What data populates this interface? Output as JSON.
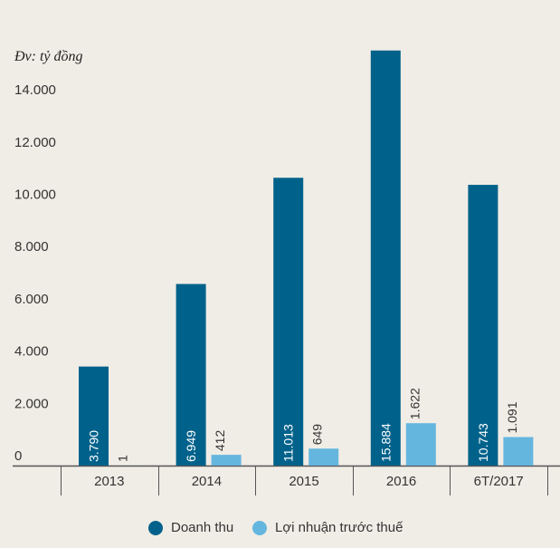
{
  "unit_label": "Đv: tỷ đồng",
  "colors": {
    "revenue": "#00628b",
    "profit": "#65b6df",
    "axis": "#555555",
    "text": "#333333",
    "background": "#f0ede6"
  },
  "legend": {
    "revenue": "Doanh thu",
    "profit": "Lợi nhuận trước thuế"
  },
  "chart_data": {
    "type": "bar",
    "title": "",
    "xlabel": "",
    "ylabel": "Đv: tỷ đồng",
    "ylim": [
      0,
      15000
    ],
    "yticks": [
      0,
      2000,
      4000,
      6000,
      8000,
      10000,
      12000,
      14000
    ],
    "ytick_labels": [
      "0",
      "2.000",
      "4.000",
      "6.000",
      "8.000",
      "10.000",
      "12.000",
      "14.000"
    ],
    "categories": [
      "2013",
      "2014",
      "2015",
      "2016",
      "6T/2017"
    ],
    "series": [
      {
        "name": "Doanh thu",
        "values": [
          3790,
          6949,
          11013,
          15884,
          10743
        ],
        "labels": [
          "3.790",
          "6.949",
          "11.013",
          "15.884",
          "10.743"
        ]
      },
      {
        "name": "Lợi nhuận trước thuế",
        "values": [
          1,
          412,
          649,
          1622,
          1091
        ],
        "labels": [
          "1",
          "412",
          "649",
          "1.622",
          "1.091"
        ]
      }
    ],
    "legend_position": "bottom-center"
  }
}
